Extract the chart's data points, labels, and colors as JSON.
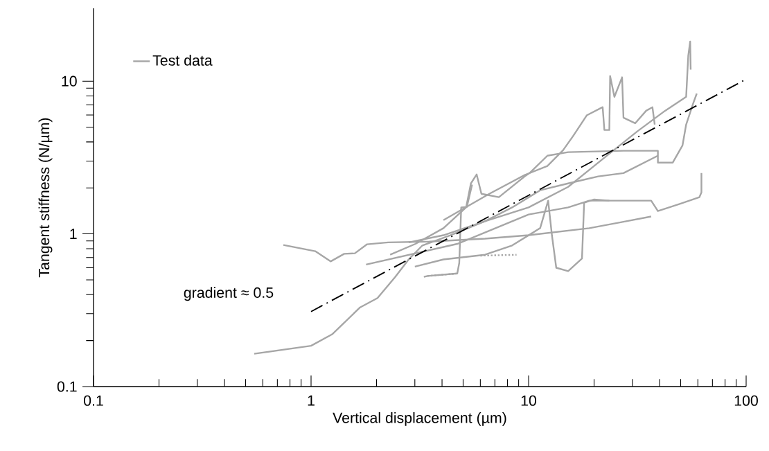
{
  "chart_data": {
    "type": "line",
    "xlabel": "Vertical displacement (µm)",
    "ylabel": "Tangent stiffness (N/µm)",
    "log": "xy",
    "xlim": [
      0.1,
      100
    ],
    "ylim": [
      0.1,
      30
    ],
    "xticks": [
      0.1,
      1,
      10,
      100
    ],
    "yticks": [
      0.1,
      1,
      10
    ],
    "grid": false,
    "legend": "top left",
    "marker": "none",
    "line_style": "solid",
    "annotations": [
      "gradient ≈ 0.5"
    ],
    "series": [
      {
        "name": "Test data",
        "color": "#a6a6a6",
        "x": [
          0.548,
          1,
          1.25,
          1.68,
          2.02,
          2.43,
          2.81,
          3.25,
          4.37,
          6.3,
          10,
          15.2,
          21.9,
          31.6,
          42.4,
          53.0,
          54.2,
          55.3,
          55.6
        ],
        "values": [
          0.164,
          0.185,
          0.22,
          0.33,
          0.38,
          0.52,
          0.68,
          0.84,
          0.98,
          1.21,
          1.49,
          2.03,
          3.09,
          4.69,
          6.4,
          7.9,
          14.7,
          18.2,
          11.9
        ]
      },
      {
        "color": "#a6a6a6",
        "x": [
          0.746,
          1.045,
          1.23,
          1.42,
          1.59,
          1.81,
          2.26,
          3.5,
          6.3,
          10,
          19,
          27.3,
          36.6
        ],
        "values": [
          0.846,
          0.77,
          0.66,
          0.74,
          0.746,
          0.855,
          0.88,
          0.89,
          0.93,
          0.98,
          1.09,
          1.2,
          1.3
        ]
      },
      {
        "color": "#a6a6a6",
        "x": [
          1.79,
          4.7,
          10,
          15.2,
          19,
          36.6,
          39.3,
          49.5,
          61,
          62.3,
          62.3
        ],
        "values": [
          0.63,
          0.86,
          1.34,
          1.49,
          1.65,
          1.65,
          1.41,
          1.57,
          1.74,
          1.87,
          2.5
        ]
      },
      {
        "color": "#a6a6a6",
        "x": [
          4.06,
          6.6,
          9.6,
          12.2,
          14.4,
          16.0,
          18.5,
          21.9,
          22.3,
          23.5,
          23.7,
          24.8,
          26.9,
          27.3,
          30.9,
          34.7,
          37.1,
          38.0
        ],
        "values": [
          1.23,
          1.83,
          2.43,
          2.78,
          3.53,
          4.36,
          5.97,
          6.76,
          4.79,
          4.79,
          10.8,
          7.9,
          10.6,
          5.77,
          5.3,
          6.4,
          6.75,
          5.2
        ]
      },
      {
        "color": "#a6a6a6",
        "x": [
          2.31,
          3.02,
          4.06,
          5.16,
          5.43,
          5.77,
          6.07,
          7.3,
          9.6,
          10.1,
          12.2,
          15.2,
          27.3,
          39.3,
          39.3,
          46,
          51,
          53,
          57,
          59.3
        ],
        "values": [
          0.73,
          0.86,
          1.09,
          1.49,
          2.14,
          2.45,
          1.83,
          1.74,
          2.38,
          2.5,
          3.25,
          3.43,
          3.5,
          3.5,
          2.93,
          2.93,
          3.8,
          5.2,
          7.1,
          8.3
        ]
      },
      {
        "color": "#a6a6a6",
        "x": [
          3.0,
          4.06,
          6.3,
          8.4,
          11.3,
          12.3,
          12.8,
          13.4,
          15.2,
          17.6,
          18.0,
          20.0,
          23.5
        ],
        "values": [
          0.61,
          0.68,
          0.73,
          0.84,
          1.09,
          1.65,
          0.98,
          0.6,
          0.57,
          0.69,
          1.6,
          1.68,
          1.65
        ]
      },
      {
        "color": "#a6a6a6",
        "x": [
          2.81,
          4.06,
          6.3,
          8.4,
          11.3,
          15.2,
          20.9,
          27.3,
          39.3
        ],
        "values": [
          0.88,
          0.98,
          1.21,
          1.49,
          1.93,
          2.14,
          2.38,
          2.5,
          3.25
        ]
      },
      {
        "color": "#a6a6a6",
        "x": [
          3.3,
          3.43,
          4.7,
          4.8,
          4.9,
          5.2,
          5.5
        ],
        "values": [
          0.523,
          0.53,
          0.55,
          0.645,
          1.49,
          1.5,
          2.1
        ]
      },
      {
        "color": "#a6a6a6",
        "line_style": "dotted",
        "x": [
          3.43,
          4.7,
          5.0,
          6.0,
          8.8
        ],
        "values": [
          0.53,
          0.55,
          null,
          0.72,
          0.73
        ]
      },
      {
        "color": "#000000",
        "line_style": "dashdot",
        "x": [
          1,
          100
        ],
        "values": [
          0.31,
          10.3
        ]
      }
    ]
  }
}
